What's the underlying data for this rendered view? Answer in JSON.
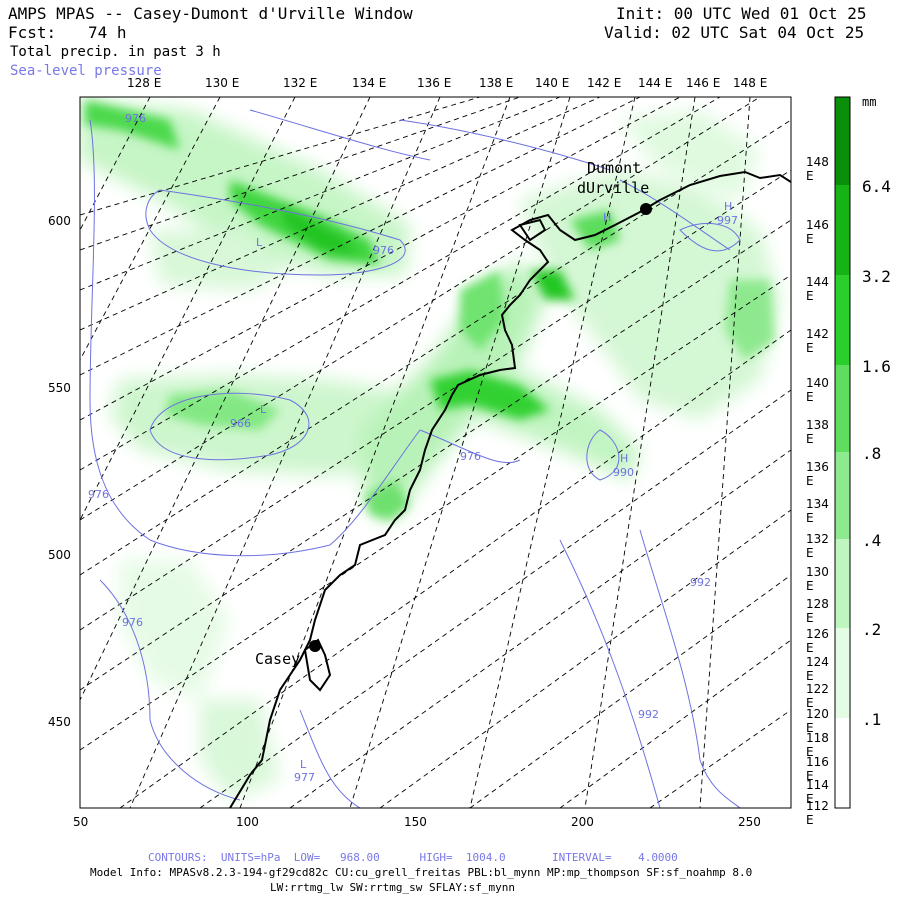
{
  "header": {
    "title": "AMPS MPAS -- Casey-Dumont d'Urville Window",
    "init": "Init: 00 UTC Wed 01 Oct 25",
    "fcst_label": "Fcst:",
    "fcst_value": "74 h",
    "valid": "Valid: 02 UTC Sat 04 Oct 25",
    "field": "Total precip. in past 3 h",
    "overlay": "Sea-level pressure"
  },
  "colors": {
    "overlay_label": "#7878e8",
    "pressure_contour": "#6e72e0",
    "precip_levels": [
      "#ffffff",
      "#e4fbe4",
      "#bff5bf",
      "#8eea8e",
      "#5fdd5f",
      "#2bcf2b",
      "#16b316",
      "#0a8f0a"
    ]
  },
  "map": {
    "top_longitudes": [
      "128 E",
      "130 E",
      "132 E",
      "134 E",
      "136 E",
      "138 E",
      "140 E",
      "142 E",
      "144 E",
      "146 E",
      "148 E"
    ],
    "right_longitudes": [
      "148 E",
      "146 E",
      "144 E",
      "142 E",
      "140 E",
      "138 E",
      "136 E",
      "134 E",
      "132 E",
      "130 E",
      "128 E",
      "126 E",
      "124 E",
      "122 E",
      "120 E",
      "118 E",
      "116 E",
      "114 E",
      "112 E"
    ],
    "x_ticks": [
      "50",
      "100",
      "150",
      "200",
      "250"
    ],
    "y_ticks": [
      "600",
      "550",
      "500",
      "450"
    ],
    "stations": [
      {
        "name": "Dumont",
        "name2": "dUrville"
      },
      {
        "name": "Casey"
      }
    ],
    "pressure_labels": [
      "976",
      "976",
      "966",
      "976",
      "976",
      "976",
      "977",
      "997",
      "990",
      "992",
      "992"
    ],
    "pressure_centers": [
      "L",
      "L",
      "L",
      "H",
      "H",
      "H"
    ]
  },
  "legend": {
    "unit": "mm",
    "labels": [
      "6.4",
      "3.2",
      "1.6",
      ".8",
      ".4",
      ".2",
      ".1"
    ]
  },
  "footer": {
    "contours": "CONTOURS:  UNITS=hPa  LOW=   968.00      HIGH=  1004.0       INTERVAL=    4.0000",
    "model_info_1": "Model Info: MPASv8.2.3-194-gf29cd82c CU:cu_grell_freitas PBL:bl_mynn MP:mp_thompson SF:sf_noahmp 8.0",
    "model_info_2": "LW:rrtmg_lw SW:rrtmg_sw SFLAY:sf_mynn"
  }
}
